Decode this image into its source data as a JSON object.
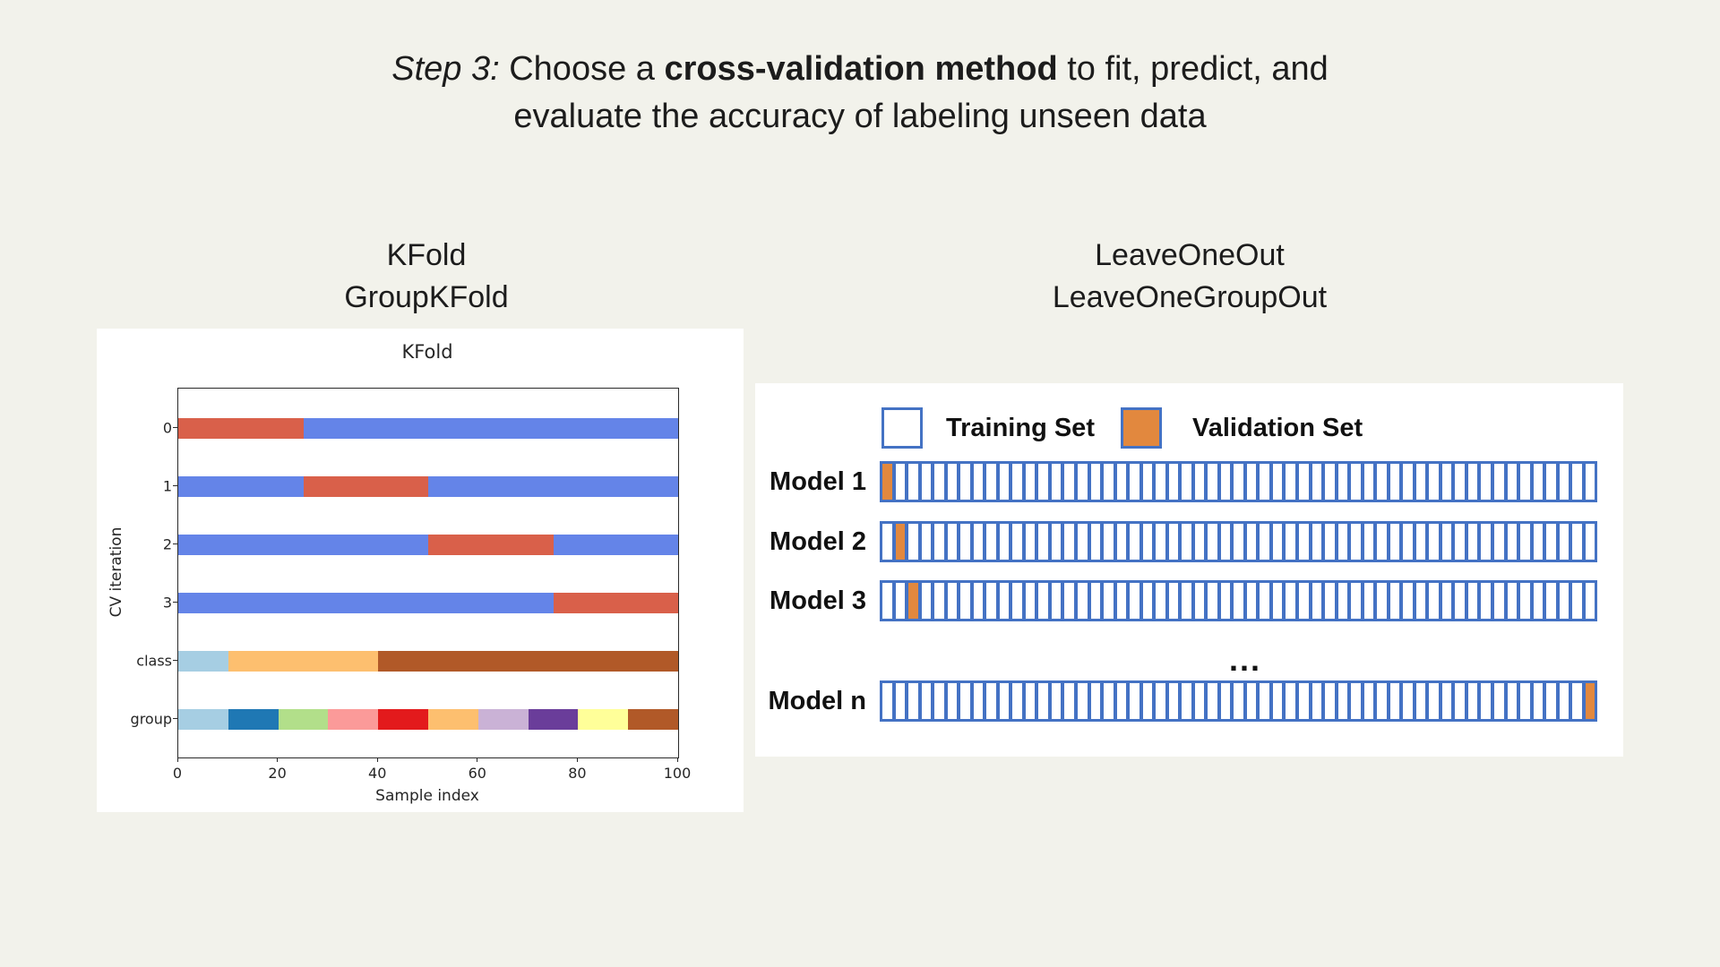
{
  "page": {
    "background": "#f2f2eb"
  },
  "title": {
    "step_label": "Step 3:",
    "rest_before_bold": " Choose a ",
    "bold_phrase": "cross-validation method",
    "rest_after_bold": " to fit, predict, and",
    "line2": "evaluate the accuracy of labeling unseen data"
  },
  "sections": {
    "left": {
      "line1": "KFold",
      "line2": "GroupKFold"
    },
    "right": {
      "line1": "LeaveOneOut",
      "line2": "LeaveOneGroupOut"
    }
  },
  "chart_data": {
    "type": "bar",
    "title": "KFold",
    "xlabel": "Sample index",
    "ylabel": "CV iteration",
    "xlim": [
      0,
      100
    ],
    "x_ticks": [
      0,
      20,
      40,
      60,
      80,
      100
    ],
    "grid": false,
    "colors": {
      "training": "#6484e8",
      "validation": "#d9604a"
    },
    "rows": [
      {
        "label": "0",
        "segments": [
          {
            "role": "validation",
            "from": 0,
            "to": 25
          },
          {
            "role": "training",
            "from": 25,
            "to": 100
          }
        ]
      },
      {
        "label": "1",
        "segments": [
          {
            "role": "training",
            "from": 0,
            "to": 25
          },
          {
            "role": "validation",
            "from": 25,
            "to": 50
          },
          {
            "role": "training",
            "from": 50,
            "to": 100
          }
        ]
      },
      {
        "label": "2",
        "segments": [
          {
            "role": "training",
            "from": 0,
            "to": 50
          },
          {
            "role": "validation",
            "from": 50,
            "to": 75
          },
          {
            "role": "training",
            "from": 75,
            "to": 100
          }
        ]
      },
      {
        "label": "3",
        "segments": [
          {
            "role": "training",
            "from": 0,
            "to": 75
          },
          {
            "role": "validation",
            "from": 75,
            "to": 100
          }
        ]
      },
      {
        "label": "class",
        "segments": [
          {
            "color": "#a6cee3",
            "from": 0,
            "to": 10
          },
          {
            "color": "#fdbf6f",
            "from": 10,
            "to": 40
          },
          {
            "color": "#b15928",
            "from": 40,
            "to": 100
          }
        ]
      },
      {
        "label": "group",
        "segments": [
          {
            "color": "#a6cee3",
            "from": 0,
            "to": 10
          },
          {
            "color": "#1f78b4",
            "from": 10,
            "to": 20
          },
          {
            "color": "#b2df8a",
            "from": 20,
            "to": 30
          },
          {
            "color": "#fb9a99",
            "from": 30,
            "to": 40
          },
          {
            "color": "#e31a1c",
            "from": 40,
            "to": 50
          },
          {
            "color": "#fdbf6f",
            "from": 50,
            "to": 60
          },
          {
            "color": "#cab2d6",
            "from": 60,
            "to": 70
          },
          {
            "color": "#6a3d9a",
            "from": 70,
            "to": 80
          },
          {
            "color": "#ffff99",
            "from": 80,
            "to": 90
          },
          {
            "color": "#b15928",
            "from": 90,
            "to": 100
          }
        ]
      }
    ]
  },
  "loo_diagram": {
    "colors": {
      "frame": "#4472c4",
      "validation": "#e2883e",
      "training": "#ffffff"
    },
    "legend": [
      {
        "label": "Training Set",
        "swatch": "training"
      },
      {
        "label": "Validation Set",
        "swatch": "validation"
      }
    ],
    "cells_per_row": 55,
    "rows": [
      {
        "label": "Model 1",
        "validation_index": 0
      },
      {
        "label": "Model 2",
        "validation_index": 1
      },
      {
        "label": "Model 3",
        "validation_index": 2
      },
      {
        "label": "Model n",
        "validation_index": "last"
      }
    ],
    "ellipsis": "..."
  }
}
